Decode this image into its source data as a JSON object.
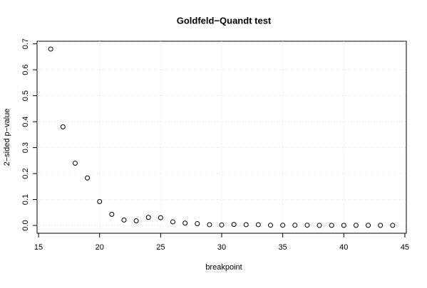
{
  "chart_data": {
    "type": "scatter",
    "title": "Goldfeld−Quandt test",
    "x_label": "breakpoint",
    "y_label": "2−sided p−value",
    "x": [
      16,
      17,
      18,
      19,
      20,
      21,
      22,
      23,
      24,
      25,
      26,
      27,
      28,
      29,
      30,
      31,
      32,
      33,
      34,
      35,
      36,
      37,
      38,
      39,
      40,
      41,
      42,
      43,
      44
    ],
    "values": [
      0.68,
      0.38,
      0.24,
      0.183,
      0.092,
      0.043,
      0.021,
      0.018,
      0.031,
      0.03,
      0.014,
      0.009,
      0.007,
      0.003,
      0.002,
      0.004,
      0.003,
      0.003,
      0.001,
      0.001,
      0.001,
      0.001,
      0.0005,
      0.0005,
      0.0005,
      0.0005,
      0.0005,
      0.0005,
      0.0005
    ],
    "color": "#000000",
    "xlim": [
      14.88,
      45.12
    ],
    "xticks": [
      15,
      20,
      25,
      30,
      35,
      40,
      45
    ],
    "ylim": [
      -0.03,
      0.71
    ],
    "yticks": [
      {
        "value": 0,
        "label": "0.0"
      },
      0.1,
      0.2,
      0.3,
      0.4,
      0.5,
      0.6,
      0.7
    ],
    "grid": true
  }
}
